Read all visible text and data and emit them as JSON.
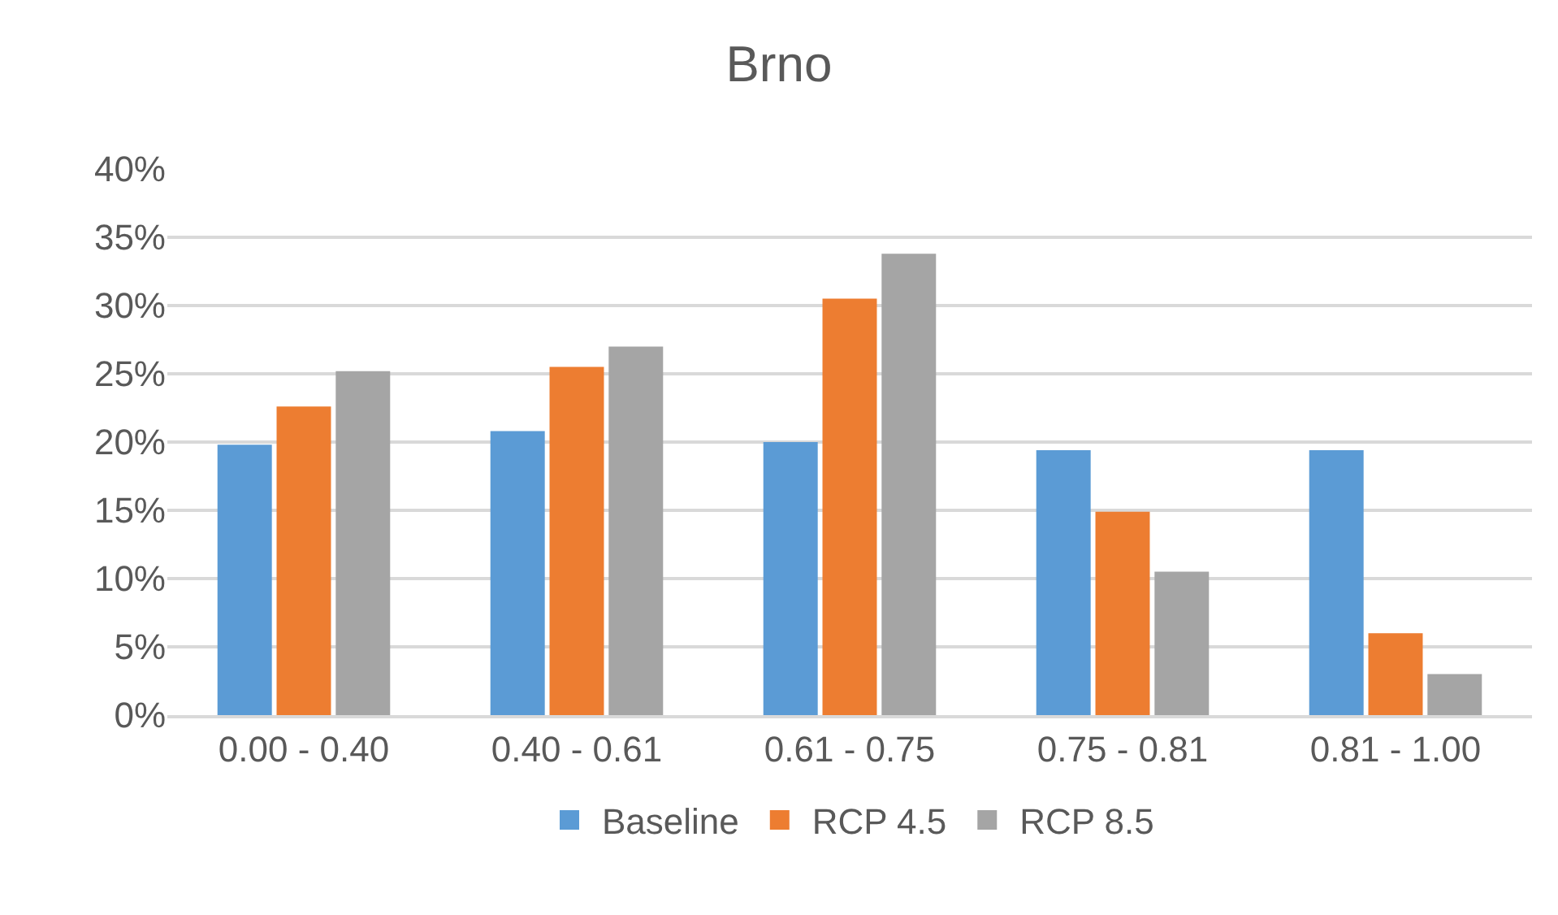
{
  "chart_data": {
    "type": "bar",
    "title": "Brno",
    "categories": [
      "0.00 - 0.40",
      "0.40 - 0.61",
      "0.61 - 0.75",
      "0.75 - 0.81",
      "0.81 - 1.00"
    ],
    "series": [
      {
        "name": "Baseline",
        "color": "#5b9bd5",
        "values": [
          19.8,
          20.8,
          20.0,
          19.4,
          19.4
        ]
      },
      {
        "name": "RCP 4.5",
        "color": "#ed7d31",
        "values": [
          22.6,
          25.5,
          30.5,
          14.9,
          6.0
        ]
      },
      {
        "name": "RCP 8.5",
        "color": "#a5a5a5",
        "values": [
          25.2,
          27.0,
          33.8,
          10.5,
          3.0
        ]
      }
    ],
    "ylim": [
      0,
      40
    ],
    "yticks": [
      {
        "value": 0,
        "label": "0%"
      },
      {
        "value": 5,
        "label": "5%"
      },
      {
        "value": 10,
        "label": "10%"
      },
      {
        "value": 15,
        "label": "15%"
      },
      {
        "value": 20,
        "label": "20%"
      },
      {
        "value": 25,
        "label": "25%"
      },
      {
        "value": 30,
        "label": "30%"
      },
      {
        "value": 35,
        "label": "35%"
      },
      {
        "value": 40,
        "label": "40%"
      }
    ],
    "grid": "y",
    "legend": "bottom"
  }
}
